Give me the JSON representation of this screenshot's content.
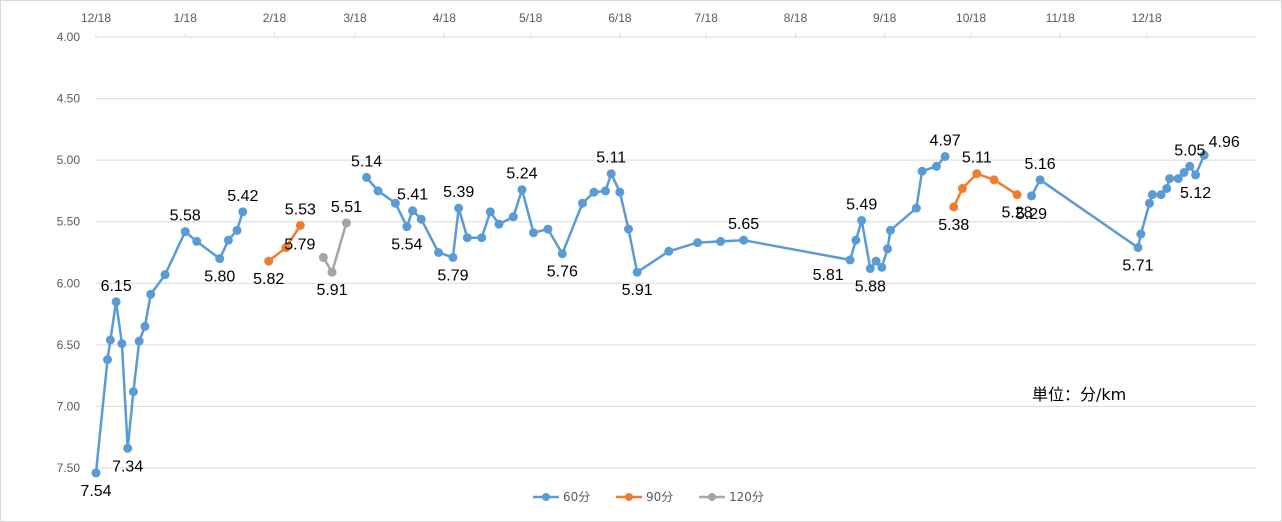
{
  "chart_data": {
    "type": "line",
    "title": "",
    "xlabel": "",
    "ylabel": "",
    "unit_note": "単位：分/km",
    "y_reversed": true,
    "ylim": [
      4.0,
      7.5
    ],
    "y_ticks": [
      "4.00",
      "4.50",
      "5.00",
      "5.50",
      "6.00",
      "6.50",
      "7.00",
      "7.50"
    ],
    "x_start": "2018-12-01",
    "x_end": "2020-01-08",
    "x_ticks": [
      {
        "date": "2018-12-01",
        "label": "12/18"
      },
      {
        "date": "2019-01-01",
        "label": "1/18"
      },
      {
        "date": "2019-02-01",
        "label": "2/18"
      },
      {
        "date": "2019-03-01",
        "label": "3/18"
      },
      {
        "date": "2019-04-01",
        "label": "4/18"
      },
      {
        "date": "2019-05-01",
        "label": "5/18"
      },
      {
        "date": "2019-06-01",
        "label": "6/18"
      },
      {
        "date": "2019-07-01",
        "label": "7/18"
      },
      {
        "date": "2019-08-01",
        "label": "8/18"
      },
      {
        "date": "2019-09-01",
        "label": "9/18"
      },
      {
        "date": "2019-10-01",
        "label": "10/18"
      },
      {
        "date": "2019-11-01",
        "label": "11/18"
      },
      {
        "date": "2019-12-01",
        "label": "12/18"
      }
    ],
    "grid": true,
    "legend_position": "bottom",
    "series": [
      {
        "name": "60分",
        "color": "#5b9bd5",
        "segments": [
          [
            {
              "x": "2018-12-01",
              "y": 7.54,
              "label": "7.54",
              "lpos": "below"
            },
            {
              "x": "2018-12-05",
              "y": 6.62
            },
            {
              "x": "2018-12-06",
              "y": 6.46
            },
            {
              "x": "2018-12-08",
              "y": 6.15,
              "label": "6.15",
              "lpos": "above"
            },
            {
              "x": "2018-12-10",
              "y": 6.49
            },
            {
              "x": "2018-12-12",
              "y": 7.34,
              "label": "7.34",
              "lpos": "below"
            },
            {
              "x": "2018-12-14",
              "y": 6.88
            },
            {
              "x": "2018-12-16",
              "y": 6.47
            },
            {
              "x": "2018-12-18",
              "y": 6.35
            },
            {
              "x": "2018-12-20",
              "y": 6.09
            },
            {
              "x": "2018-12-25",
              "y": 5.93
            },
            {
              "x": "2019-01-01",
              "y": 5.58,
              "label": "5.58",
              "lpos": "above"
            },
            {
              "x": "2019-01-05",
              "y": 5.66
            },
            {
              "x": "2019-01-13",
              "y": 5.8,
              "label": "5.80",
              "lpos": "below"
            },
            {
              "x": "2019-01-16",
              "y": 5.65
            },
            {
              "x": "2019-01-19",
              "y": 5.57
            },
            {
              "x": "2019-01-21",
              "y": 5.42,
              "label": "5.42",
              "lpos": "above"
            }
          ],
          [
            {
              "x": "2019-03-05",
              "y": 5.14,
              "label": "5.14",
              "lpos": "above"
            },
            {
              "x": "2019-03-09",
              "y": 5.25
            },
            {
              "x": "2019-03-15",
              "y": 5.35
            },
            {
              "x": "2019-03-19",
              "y": 5.54,
              "label": "5.54",
              "lpos": "below"
            },
            {
              "x": "2019-03-21",
              "y": 5.41,
              "label": "5.41",
              "lpos": "above"
            },
            {
              "x": "2019-03-24",
              "y": 5.48
            },
            {
              "x": "2019-03-30",
              "y": 5.75
            },
            {
              "x": "2019-04-04",
              "y": 5.79,
              "label": "5.79",
              "lpos": "below"
            },
            {
              "x": "2019-04-06",
              "y": 5.39,
              "label": "5.39",
              "lpos": "above"
            },
            {
              "x": "2019-04-09",
              "y": 5.63
            },
            {
              "x": "2019-04-14",
              "y": 5.63
            },
            {
              "x": "2019-04-17",
              "y": 5.42
            },
            {
              "x": "2019-04-20",
              "y": 5.52
            },
            {
              "x": "2019-04-25",
              "y": 5.46
            },
            {
              "x": "2019-04-28",
              "y": 5.24,
              "label": "5.24",
              "lpos": "above"
            },
            {
              "x": "2019-05-02",
              "y": 5.59
            },
            {
              "x": "2019-05-07",
              "y": 5.56
            },
            {
              "x": "2019-05-12",
              "y": 5.76,
              "label": "5.76",
              "lpos": "below"
            },
            {
              "x": "2019-05-19",
              "y": 5.35
            },
            {
              "x": "2019-05-23",
              "y": 5.26
            },
            {
              "x": "2019-05-27",
              "y": 5.25
            },
            {
              "x": "2019-05-29",
              "y": 5.11,
              "label": "5.11",
              "lpos": "above"
            },
            {
              "x": "2019-06-01",
              "y": 5.26
            },
            {
              "x": "2019-06-04",
              "y": 5.56
            },
            {
              "x": "2019-06-07",
              "y": 5.91,
              "label": "5.91",
              "lpos": "below"
            },
            {
              "x": "2019-06-18",
              "y": 5.74
            },
            {
              "x": "2019-06-28",
              "y": 5.67
            },
            {
              "x": "2019-07-06",
              "y": 5.66
            },
            {
              "x": "2019-07-14",
              "y": 5.65,
              "label": "5.65",
              "lpos": "above"
            },
            {
              "x": "2019-08-20",
              "y": 5.81,
              "label": "5.81",
              "lpos": "below-left"
            },
            {
              "x": "2019-08-22",
              "y": 5.65
            },
            {
              "x": "2019-08-24",
              "y": 5.49,
              "label": "5.49",
              "lpos": "above"
            },
            {
              "x": "2019-08-27",
              "y": 5.88,
              "label": "5.88",
              "lpos": "below"
            },
            {
              "x": "2019-08-29",
              "y": 5.82
            },
            {
              "x": "2019-08-31",
              "y": 5.87
            },
            {
              "x": "2019-09-02",
              "y": 5.72
            },
            {
              "x": "2019-09-03",
              "y": 5.57
            },
            {
              "x": "2019-09-12",
              "y": 5.39
            },
            {
              "x": "2019-09-14",
              "y": 5.09
            },
            {
              "x": "2019-09-19",
              "y": 5.05
            },
            {
              "x": "2019-09-22",
              "y": 4.97,
              "label": "4.97",
              "lpos": "above"
            }
          ],
          [
            {
              "x": "2019-10-22",
              "y": 5.29,
              "label": "5.29",
              "lpos": "below"
            },
            {
              "x": "2019-10-25",
              "y": 5.16,
              "label": "5.16",
              "lpos": "above"
            },
            {
              "x": "2019-11-28",
              "y": 5.71,
              "label": "5.71",
              "lpos": "below"
            },
            {
              "x": "2019-11-29",
              "y": 5.6
            },
            {
              "x": "2019-12-02",
              "y": 5.35
            },
            {
              "x": "2019-12-03",
              "y": 5.28
            },
            {
              "x": "2019-12-06",
              "y": 5.28
            },
            {
              "x": "2019-12-08",
              "y": 5.23
            },
            {
              "x": "2019-12-09",
              "y": 5.15
            },
            {
              "x": "2019-12-12",
              "y": 5.15
            },
            {
              "x": "2019-12-14",
              "y": 5.1
            },
            {
              "x": "2019-12-16",
              "y": 5.05,
              "label": "5.05",
              "lpos": "above"
            },
            {
              "x": "2019-12-18",
              "y": 5.12,
              "label": "5.12",
              "lpos": "below"
            },
            {
              "x": "2019-12-21",
              "y": 4.96,
              "label": "4.96",
              "lpos": "above-right"
            }
          ]
        ]
      },
      {
        "name": "90分",
        "color": "#ed7d31",
        "segments": [
          [
            {
              "x": "2019-01-30",
              "y": 5.82,
              "label": "5.82",
              "lpos": "below"
            },
            {
              "x": "2019-02-05",
              "y": 5.71
            },
            {
              "x": "2019-02-10",
              "y": 5.53,
              "label": "5.53",
              "lpos": "above"
            }
          ],
          [
            {
              "x": "2019-09-25",
              "y": 5.38,
              "label": "5.38",
              "lpos": "below"
            },
            {
              "x": "2019-09-28",
              "y": 5.23
            },
            {
              "x": "2019-10-03",
              "y": 5.11,
              "label": "5.11",
              "lpos": "above"
            },
            {
              "x": "2019-10-09",
              "y": 5.16
            },
            {
              "x": "2019-10-17",
              "y": 5.28,
              "label": "5.28",
              "lpos": "below"
            }
          ]
        ]
      },
      {
        "name": "120分",
        "color": "#a5a5a5",
        "segments": [
          [
            {
              "x": "2019-02-18",
              "y": 5.79,
              "label": "5.79",
              "lpos": "above-left"
            },
            {
              "x": "2019-02-21",
              "y": 5.91,
              "label": "5.91",
              "lpos": "below"
            },
            {
              "x": "2019-02-26",
              "y": 5.51,
              "label": "5.51",
              "lpos": "above"
            }
          ]
        ]
      }
    ]
  }
}
